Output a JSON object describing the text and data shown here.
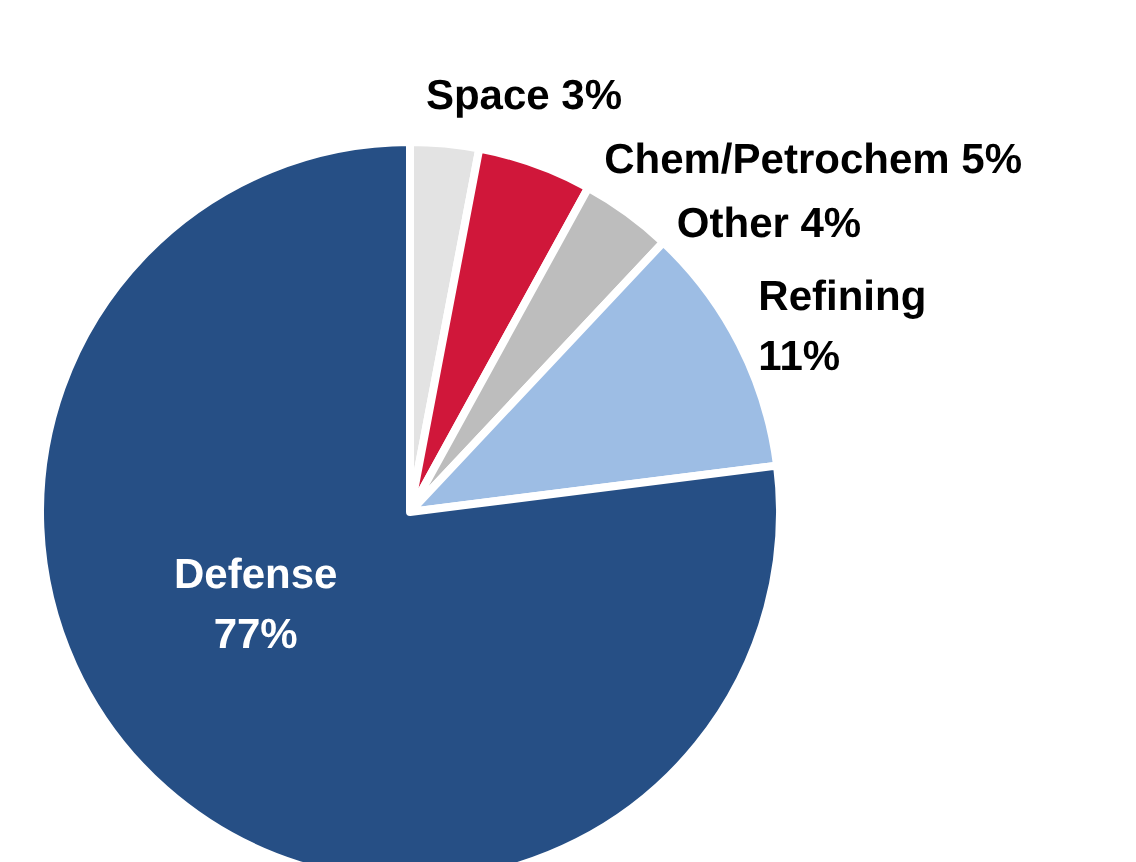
{
  "chart_data": {
    "type": "pie",
    "categories": [
      "Space",
      "Chem/Petrochem",
      "Other",
      "Refining",
      "Defense"
    ],
    "values": [
      3,
      5,
      4,
      11,
      77
    ],
    "value_labels": [
      "3%",
      "5%",
      "4%",
      "11%",
      "77%"
    ],
    "colors": [
      "#e3e3e3",
      "#d0173a",
      "#bdbdbd",
      "#9dbde4",
      "#264f85"
    ],
    "legend": false
  }
}
